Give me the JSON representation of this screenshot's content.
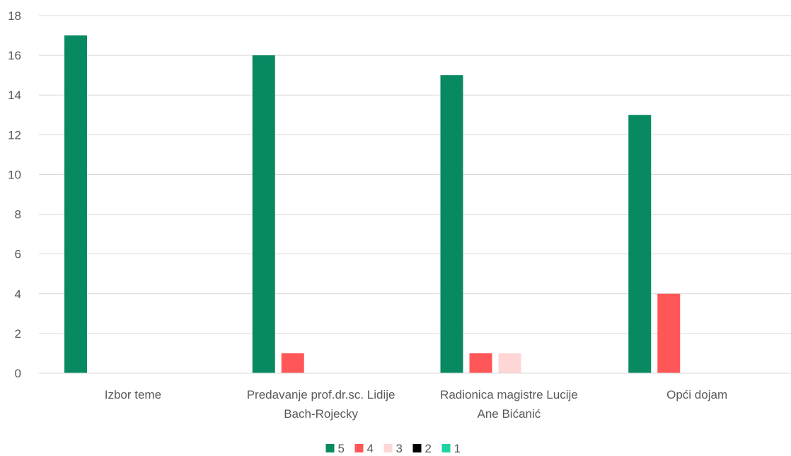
{
  "chart_data": {
    "type": "bar",
    "title": "",
    "xlabel": "",
    "ylabel": "",
    "ylim": [
      0,
      18
    ],
    "yticks": [
      0,
      2,
      4,
      6,
      8,
      10,
      12,
      14,
      16,
      18
    ],
    "grid": true,
    "legend_position": "bottom",
    "categories": [
      [
        "Izbor teme"
      ],
      [
        "Predavanje prof.dr.sc. Lidije",
        "Bach-Rojecky"
      ],
      [
        "Radionica magistre Lucije",
        "Ane Bićanić"
      ],
      [
        "Opći dojam"
      ]
    ],
    "series": [
      {
        "name": "5",
        "color": "#078962",
        "values": [
          17,
          16,
          15,
          13
        ]
      },
      {
        "name": "4",
        "color": "#FF5757",
        "values": [
          0,
          1,
          1,
          4
        ]
      },
      {
        "name": "3",
        "color": "#FFD6D6",
        "values": [
          0,
          0,
          1,
          0
        ]
      },
      {
        "name": "2",
        "color": "#000000",
        "values": [
          0,
          0,
          0,
          0
        ]
      },
      {
        "name": "1",
        "color": "#1FD3A0",
        "values": [
          0,
          0,
          0,
          0
        ]
      }
    ]
  }
}
